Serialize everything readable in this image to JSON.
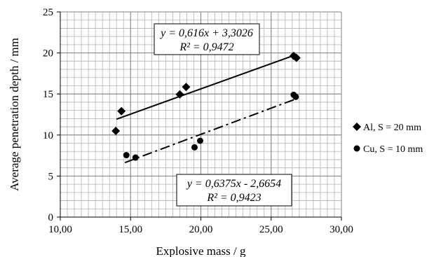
{
  "chart_data": {
    "type": "scatter",
    "title": "",
    "xlabel": "Explosive mass / g",
    "ylabel": "Average penetration depth / mm",
    "xlim": [
      10,
      30
    ],
    "ylim": [
      0,
      25
    ],
    "x_ticks": [
      "10,00",
      "15,00",
      "20,00",
      "25,00",
      "30,00"
    ],
    "y_ticks": [
      "0",
      "5",
      "10",
      "15",
      "20",
      "25"
    ],
    "x_minor_step": 0.5,
    "y_minor_step": 1,
    "grid": true,
    "legend_position": "right",
    "series": [
      {
        "name": "Al, S = 20 mm",
        "marker": "diamond",
        "color": "#000000",
        "points": [
          {
            "x": 13.95,
            "y": 10.5
          },
          {
            "x": 14.35,
            "y": 12.9
          },
          {
            "x": 18.5,
            "y": 14.95
          },
          {
            "x": 18.95,
            "y": 15.85
          },
          {
            "x": 26.6,
            "y": 19.65
          },
          {
            "x": 26.8,
            "y": 19.4
          }
        ],
        "trendline": {
          "slope": 0.616,
          "intercept": 3.3026,
          "x_range": [
            14.0,
            26.7
          ],
          "style": "solid"
        },
        "equation": "y = 0,616x + 3,3026",
        "r_squared": "R² = 0,9472"
      },
      {
        "name": "Cu, S = 10 mm",
        "marker": "circle",
        "color": "#000000",
        "points": [
          {
            "x": 14.7,
            "y": 7.55
          },
          {
            "x": 15.35,
            "y": 7.25
          },
          {
            "x": 19.55,
            "y": 8.5
          },
          {
            "x": 19.95,
            "y": 9.3
          },
          {
            "x": 26.6,
            "y": 14.9
          },
          {
            "x": 26.75,
            "y": 14.65
          }
        ],
        "trendline": {
          "slope": 0.6375,
          "intercept": -2.6654,
          "x_range": [
            14.6,
            26.7
          ],
          "style": "dashdot"
        },
        "equation": "y = 0,6375x - 2,6654",
        "r_squared": "R² = 0,9423"
      }
    ]
  }
}
